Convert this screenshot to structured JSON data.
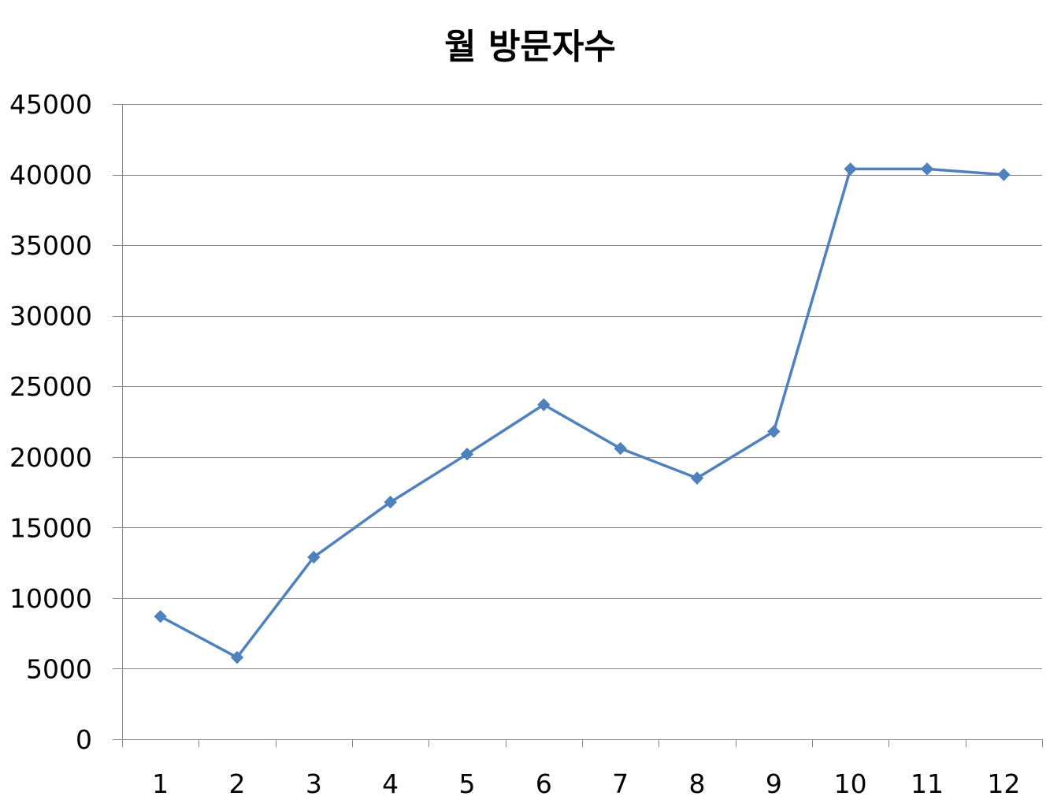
{
  "chart_data": {
    "type": "line",
    "title": "월 방문자수",
    "xlabel": "",
    "ylabel": "",
    "categories": [
      "1",
      "2",
      "3",
      "4",
      "5",
      "6",
      "7",
      "8",
      "9",
      "10",
      "11",
      "12"
    ],
    "series": [
      {
        "values": [
          8700,
          5800,
          12900,
          16800,
          20200,
          23700,
          20600,
          18500,
          21800,
          40400,
          40400,
          40000
        ],
        "color": "#4F81BD",
        "marker": "diamond"
      }
    ],
    "ylim": [
      0,
      45000
    ],
    "yticks": [
      "0",
      "5000",
      "10000",
      "15000",
      "20000",
      "25000",
      "30000",
      "35000",
      "40000",
      "45000"
    ],
    "grid": true,
    "legend": "none"
  }
}
